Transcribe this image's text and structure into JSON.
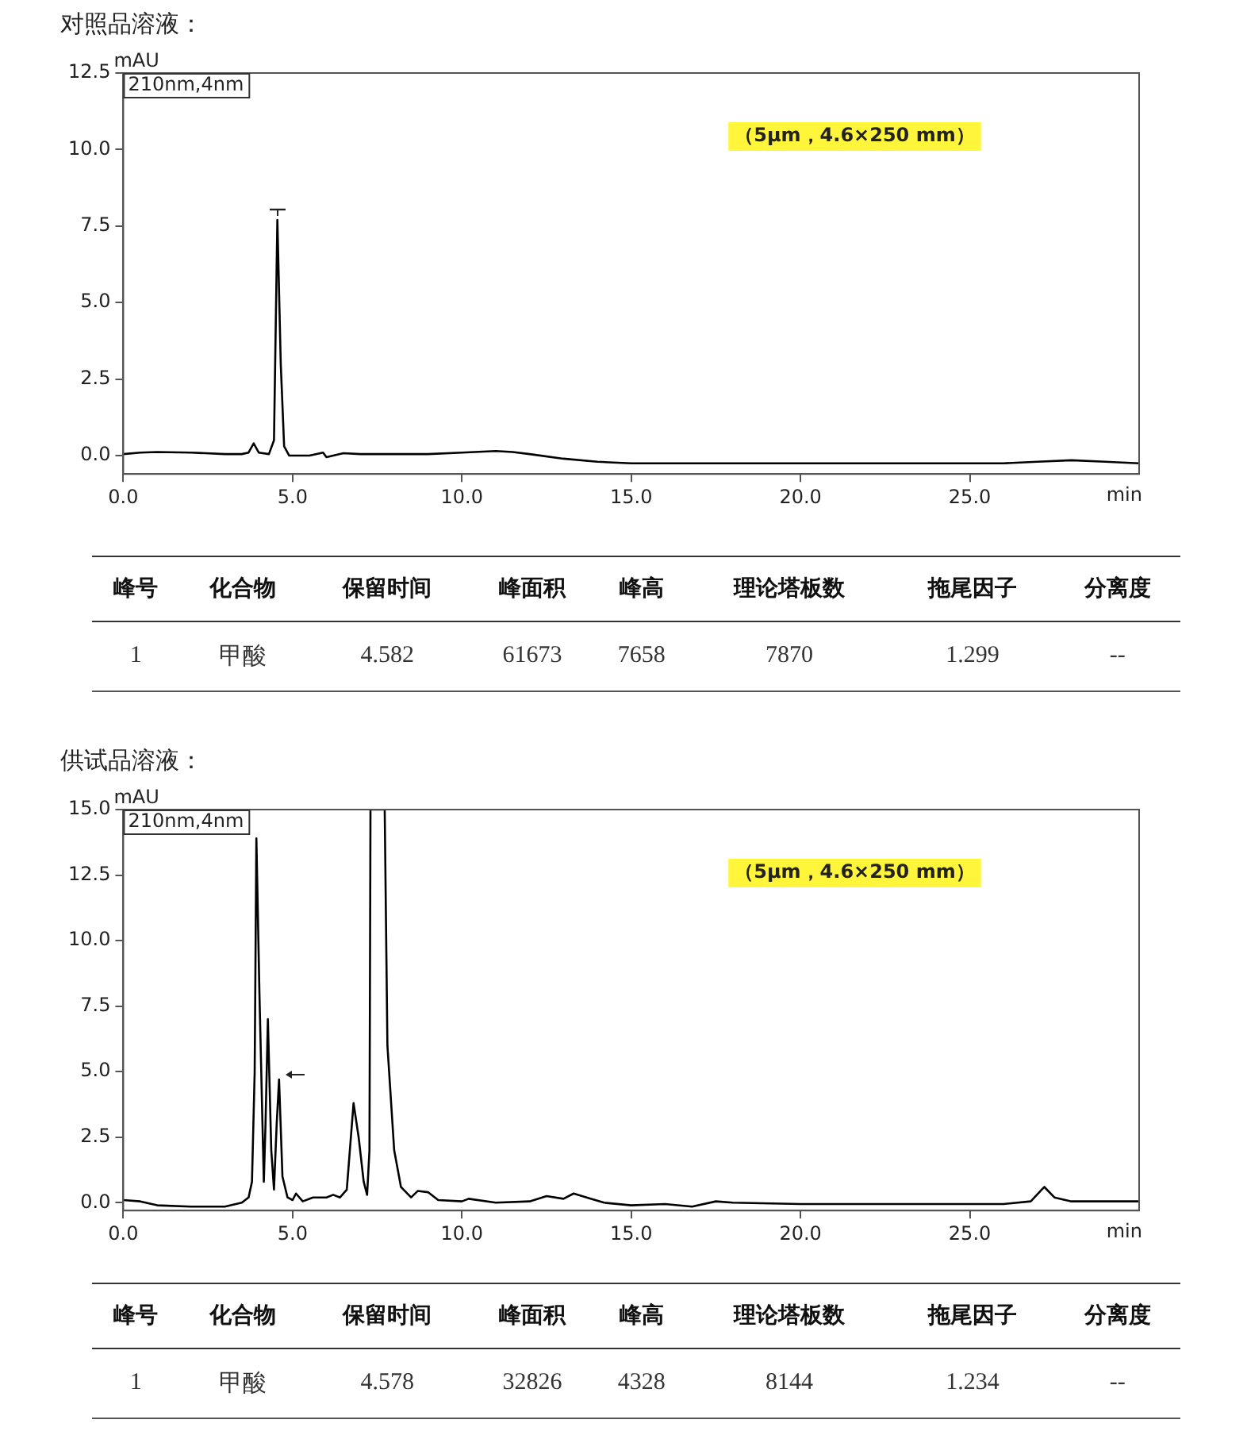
{
  "chart_data": [
    {
      "type": "line",
      "title": "对照品溶液：",
      "xlabel": "min",
      "ylabel": "mAU",
      "xlim": [
        0,
        30
      ],
      "xticks": [
        {
          "value": 0,
          "label": "0.0"
        },
        {
          "value": 5,
          "label": "5.0"
        },
        {
          "value": 10,
          "label": "10.0"
        },
        {
          "value": 15,
          "label": "15.0"
        },
        {
          "value": 20,
          "label": "20.0"
        },
        {
          "value": 25,
          "label": "25.0"
        }
      ],
      "ylim": [
        -0.6,
        12.5
      ],
      "yticks": [
        {
          "value": 0,
          "label": "0.0"
        },
        {
          "value": 2.5,
          "label": "2.5"
        },
        {
          "value": 5,
          "label": "5.0"
        },
        {
          "value": 7.5,
          "label": "7.5"
        },
        {
          "value": 10,
          "label": "10.0"
        },
        {
          "value": 12.5,
          "label": "12.5"
        }
      ],
      "grid": false,
      "legend": false,
      "marker": "none",
      "annotations": [
        "210nm,4nm",
        "（5μm，4.6×250 mm）"
      ],
      "series": [
        {
          "color": "#000000",
          "x": [
            0,
            0.5,
            1,
            2,
            3,
            3.5,
            3.7,
            3.85,
            4.0,
            4.3,
            4.45,
            4.55,
            4.65,
            4.75,
            4.9,
            5.5,
            5.9,
            6.0,
            6.5,
            7,
            8,
            9,
            10,
            11,
            11.5,
            12,
            13,
            14,
            15,
            16,
            18,
            20,
            22,
            24,
            26,
            27,
            28,
            29,
            30
          ],
          "values": [
            0.05,
            0.1,
            0.12,
            0.1,
            0.05,
            0.05,
            0.1,
            0.4,
            0.1,
            0.05,
            0.5,
            7.7,
            3,
            0.3,
            0,
            0,
            0.1,
            -0.05,
            0.08,
            0.05,
            0.05,
            0.05,
            0.1,
            0.15,
            0.12,
            0.05,
            -0.1,
            -0.2,
            -0.25,
            -0.25,
            -0.25,
            -0.25,
            -0.25,
            -0.25,
            -0.25,
            -0.2,
            -0.15,
            -0.2,
            -0.25
          ]
        }
      ]
    },
    {
      "type": "other",
      "categories": [
        "峰号",
        "化合物",
        "保留时间",
        "峰面积",
        "峰高",
        "理论塔板数",
        "拖尾因子",
        "分离度"
      ],
      "annotations": [
        "1",
        "甲酸",
        "4.582",
        "61673",
        "7658",
        "7870",
        "1.299",
        "--"
      ]
    },
    {
      "type": "line",
      "title": "供试品溶液：",
      "xlabel": "min",
      "ylabel": "mAU",
      "xlim": [
        0,
        30
      ],
      "xticks": [
        {
          "value": 0,
          "label": "0.0"
        },
        {
          "value": 5,
          "label": "5.0"
        },
        {
          "value": 10,
          "label": "10.0"
        },
        {
          "value": 15,
          "label": "15.0"
        },
        {
          "value": 20,
          "label": "20.0"
        },
        {
          "value": 25,
          "label": "25.0"
        }
      ],
      "ylim": [
        -0.3,
        15
      ],
      "yticks": [
        {
          "value": 0,
          "label": "0.0"
        },
        {
          "value": 2.5,
          "label": "2.5"
        },
        {
          "value": 5,
          "label": "5.0"
        },
        {
          "value": 7.5,
          "label": "7.5"
        },
        {
          "value": 10,
          "label": "10.0"
        },
        {
          "value": 12.5,
          "label": "12.5"
        },
        {
          "value": 15,
          "label": "15.0"
        }
      ],
      "grid": false,
      "legend": false,
      "marker": "none",
      "annotations": [
        "210nm,4nm",
        "（5μm，4.6×250 mm）"
      ],
      "series": [
        {
          "color": "#000000",
          "x": [
            0,
            0.5,
            1,
            2,
            3,
            3.5,
            3.7,
            3.8,
            3.88,
            3.93,
            4.02,
            4.15,
            4.2,
            4.27,
            4.37,
            4.45,
            4.53,
            4.6,
            4.7,
            4.85,
            5.0,
            5.1,
            5.3,
            5.6,
            6.0,
            6.2,
            6.4,
            6.6,
            6.8,
            6.95,
            7.1,
            7.2,
            7.27,
            7.3,
            7.72,
            7.8,
            8.0,
            8.2,
            8.5,
            8.7,
            9.0,
            9.3,
            10,
            10.2,
            11,
            12,
            12.5,
            13,
            13.3,
            13.8,
            14.2,
            15,
            16,
            16.8,
            17.5,
            18,
            20,
            22,
            24,
            26,
            26.8,
            27.2,
            27.5,
            28,
            30
          ],
          "values": [
            0.1,
            0.05,
            -0.1,
            -0.15,
            -0.15,
            0,
            0.2,
            0.8,
            5,
            13.9,
            8,
            0.8,
            3,
            7,
            2,
            0.5,
            3,
            4.7,
            1,
            0.2,
            0.1,
            0.35,
            0.05,
            0.2,
            0.2,
            0.3,
            0.2,
            0.5,
            3.8,
            2.5,
            0.8,
            0.3,
            2,
            15,
            15,
            6,
            2,
            0.6,
            0.2,
            0.45,
            0.4,
            0.1,
            0.05,
            0.15,
            0,
            0.05,
            0.25,
            0.15,
            0.35,
            0.15,
            0,
            -0.1,
            -0.05,
            -0.15,
            0.05,
            0,
            -0.05,
            -0.05,
            -0.05,
            -0.05,
            0.05,
            0.6,
            0.2,
            0.05,
            0.05
          ]
        }
      ]
    },
    {
      "type": "other",
      "categories": [
        "峰号",
        "化合物",
        "保留时间",
        "峰面积",
        "峰高",
        "理论塔板数",
        "拖尾因子",
        "分离度"
      ],
      "annotations": [
        "1",
        "甲酸",
        "4.578",
        "32826",
        "4328",
        "8144",
        "1.234",
        "--"
      ]
    }
  ]
}
